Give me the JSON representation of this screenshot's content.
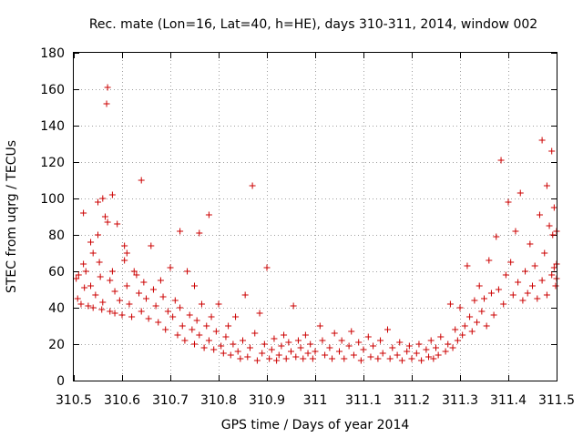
{
  "chart_data": {
    "type": "scatter",
    "title": "Rec. mate (Lon=16, Lat=40, h=HE), days 310-311, 2014, window 002",
    "xlabel": "GPS time / Days of year 2014",
    "ylabel": "STEC from uqrg / TECUs",
    "xlim": [
      310.5,
      311.5
    ],
    "ylim": [
      0,
      180
    ],
    "xticks": [
      310.5,
      310.6,
      310.7,
      310.8,
      310.9,
      311,
      311.1,
      311.2,
      311.3,
      311.4,
      311.5
    ],
    "xtick_labels": [
      "310.5",
      "310.6",
      "310.7",
      "310.8",
      "310.9",
      "311",
      "311.1",
      "311.2",
      "311.3",
      "311.4",
      "311.5"
    ],
    "yticks": [
      0,
      20,
      40,
      60,
      80,
      100,
      120,
      140,
      160,
      180
    ],
    "ytick_labels": [
      "0",
      "20",
      "40",
      "60",
      "80",
      "100",
      "120",
      "140",
      "160",
      "180"
    ],
    "grid": true,
    "marker": "+",
    "color": "#cc0000",
    "points": [
      [
        310.505,
        56
      ],
      [
        310.508,
        45
      ],
      [
        310.51,
        58
      ],
      [
        310.515,
        42
      ],
      [
        310.52,
        92
      ],
      [
        310.52,
        64
      ],
      [
        310.522,
        51
      ],
      [
        310.525,
        60
      ],
      [
        310.53,
        41
      ],
      [
        310.535,
        76
      ],
      [
        310.535,
        52
      ],
      [
        310.54,
        70
      ],
      [
        310.54,
        40
      ],
      [
        310.545,
        47
      ],
      [
        310.55,
        80
      ],
      [
        310.55,
        98
      ],
      [
        310.553,
        65
      ],
      [
        310.555,
        57
      ],
      [
        310.558,
        39
      ],
      [
        310.56,
        43
      ],
      [
        310.56,
        100
      ],
      [
        310.565,
        90
      ],
      [
        310.568,
        152
      ],
      [
        310.57,
        161
      ],
      [
        310.57,
        87
      ],
      [
        310.575,
        55
      ],
      [
        310.575,
        38
      ],
      [
        310.58,
        102
      ],
      [
        310.58,
        60
      ],
      [
        310.585,
        49
      ],
      [
        310.585,
        37
      ],
      [
        310.59,
        86
      ],
      [
        310.595,
        44
      ],
      [
        310.6,
        36
      ],
      [
        310.605,
        74
      ],
      [
        310.605,
        66
      ],
      [
        310.61,
        70
      ],
      [
        310.61,
        52
      ],
      [
        310.615,
        42
      ],
      [
        310.62,
        35
      ],
      [
        310.625,
        60
      ],
      [
        310.63,
        58
      ],
      [
        310.635,
        48
      ],
      [
        310.64,
        110
      ],
      [
        310.64,
        38
      ],
      [
        310.645,
        54
      ],
      [
        310.65,
        45
      ],
      [
        310.655,
        34
      ],
      [
        310.66,
        74
      ],
      [
        310.665,
        50
      ],
      [
        310.67,
        41
      ],
      [
        310.675,
        32
      ],
      [
        310.68,
        55
      ],
      [
        310.685,
        46
      ],
      [
        310.69,
        28
      ],
      [
        310.695,
        38
      ],
      [
        310.7,
        62
      ],
      [
        310.705,
        35
      ],
      [
        310.71,
        44
      ],
      [
        310.715,
        25
      ],
      [
        310.72,
        82
      ],
      [
        310.72,
        40
      ],
      [
        310.725,
        30
      ],
      [
        310.73,
        22
      ],
      [
        310.735,
        60
      ],
      [
        310.74,
        36
      ],
      [
        310.745,
        28
      ],
      [
        310.75,
        52
      ],
      [
        310.75,
        20
      ],
      [
        310.755,
        33
      ],
      [
        310.76,
        81
      ],
      [
        310.76,
        25
      ],
      [
        310.765,
        42
      ],
      [
        310.77,
        18
      ],
      [
        310.775,
        30
      ],
      [
        310.78,
        91
      ],
      [
        310.78,
        22
      ],
      [
        310.785,
        35
      ],
      [
        310.79,
        17
      ],
      [
        310.795,
        27
      ],
      [
        310.8,
        42
      ],
      [
        310.805,
        19
      ],
      [
        310.81,
        15
      ],
      [
        310.815,
        24
      ],
      [
        310.82,
        30
      ],
      [
        310.825,
        14
      ],
      [
        310.83,
        20
      ],
      [
        310.835,
        35
      ],
      [
        310.84,
        16
      ],
      [
        310.845,
        12
      ],
      [
        310.85,
        22
      ],
      [
        310.855,
        47
      ],
      [
        310.86,
        13
      ],
      [
        310.865,
        18
      ],
      [
        310.87,
        107
      ],
      [
        310.875,
        26
      ],
      [
        310.88,
        11
      ],
      [
        310.885,
        37
      ],
      [
        310.89,
        15
      ],
      [
        310.895,
        20
      ],
      [
        310.9,
        62
      ],
      [
        310.905,
        12
      ],
      [
        310.91,
        17
      ],
      [
        310.915,
        23
      ],
      [
        310.92,
        11
      ],
      [
        310.925,
        14
      ],
      [
        310.93,
        19
      ],
      [
        310.935,
        25
      ],
      [
        310.94,
        12
      ],
      [
        310.945,
        21
      ],
      [
        310.95,
        16
      ],
      [
        310.955,
        41
      ],
      [
        310.96,
        13
      ],
      [
        310.965,
        22
      ],
      [
        310.97,
        18
      ],
      [
        310.975,
        12
      ],
      [
        310.98,
        25
      ],
      [
        310.985,
        15
      ],
      [
        310.99,
        20
      ],
      [
        310.995,
        12
      ],
      [
        311.0,
        16
      ],
      [
        311.01,
        30
      ],
      [
        311.015,
        22
      ],
      [
        311.02,
        14
      ],
      [
        311.03,
        18
      ],
      [
        311.035,
        12
      ],
      [
        311.04,
        26
      ],
      [
        311.05,
        16
      ],
      [
        311.055,
        22
      ],
      [
        311.06,
        12
      ],
      [
        311.07,
        19
      ],
      [
        311.075,
        27
      ],
      [
        311.08,
        14
      ],
      [
        311.09,
        21
      ],
      [
        311.095,
        11
      ],
      [
        311.1,
        17
      ],
      [
        311.11,
        24
      ],
      [
        311.115,
        13
      ],
      [
        311.12,
        19
      ],
      [
        311.13,
        12
      ],
      [
        311.135,
        22
      ],
      [
        311.14,
        15
      ],
      [
        311.15,
        28
      ],
      [
        311.155,
        12
      ],
      [
        311.16,
        18
      ],
      [
        311.17,
        14
      ],
      [
        311.175,
        21
      ],
      [
        311.18,
        11
      ],
      [
        311.19,
        16
      ],
      [
        311.195,
        19
      ],
      [
        311.2,
        12
      ],
      [
        311.21,
        15
      ],
      [
        311.215,
        20
      ],
      [
        311.22,
        11
      ],
      [
        311.23,
        17
      ],
      [
        311.235,
        13
      ],
      [
        311.24,
        22
      ],
      [
        311.245,
        12
      ],
      [
        311.25,
        18
      ],
      [
        311.255,
        14
      ],
      [
        311.26,
        24
      ],
      [
        311.27,
        16
      ],
      [
        311.275,
        20
      ],
      [
        311.28,
        42
      ],
      [
        311.285,
        18
      ],
      [
        311.29,
        28
      ],
      [
        311.295,
        22
      ],
      [
        311.3,
        40
      ],
      [
        311.305,
        25
      ],
      [
        311.31,
        30
      ],
      [
        311.315,
        63
      ],
      [
        311.32,
        35
      ],
      [
        311.325,
        27
      ],
      [
        311.33,
        44
      ],
      [
        311.335,
        32
      ],
      [
        311.34,
        52
      ],
      [
        311.345,
        38
      ],
      [
        311.35,
        45
      ],
      [
        311.355,
        30
      ],
      [
        311.36,
        66
      ],
      [
        311.365,
        48
      ],
      [
        311.37,
        36
      ],
      [
        311.375,
        79
      ],
      [
        311.38,
        50
      ],
      [
        311.385,
        121
      ],
      [
        311.39,
        42
      ],
      [
        311.395,
        58
      ],
      [
        311.4,
        98
      ],
      [
        311.405,
        65
      ],
      [
        311.41,
        47
      ],
      [
        311.415,
        82
      ],
      [
        311.42,
        54
      ],
      [
        311.425,
        103
      ],
      [
        311.43,
        44
      ],
      [
        311.435,
        60
      ],
      [
        311.44,
        48
      ],
      [
        311.445,
        75
      ],
      [
        311.45,
        52
      ],
      [
        311.455,
        63
      ],
      [
        311.46,
        45
      ],
      [
        311.465,
        91
      ],
      [
        311.47,
        132
      ],
      [
        311.47,
        55
      ],
      [
        311.475,
        70
      ],
      [
        311.48,
        107
      ],
      [
        311.48,
        47
      ],
      [
        311.485,
        85
      ],
      [
        311.49,
        126
      ],
      [
        311.49,
        58
      ],
      [
        311.492,
        80
      ],
      [
        311.495,
        95
      ],
      [
        311.495,
        62
      ],
      [
        311.498,
        52
      ],
      [
        311.5,
        82
      ],
      [
        311.5,
        64
      ],
      [
        311.5,
        56
      ]
    ]
  }
}
